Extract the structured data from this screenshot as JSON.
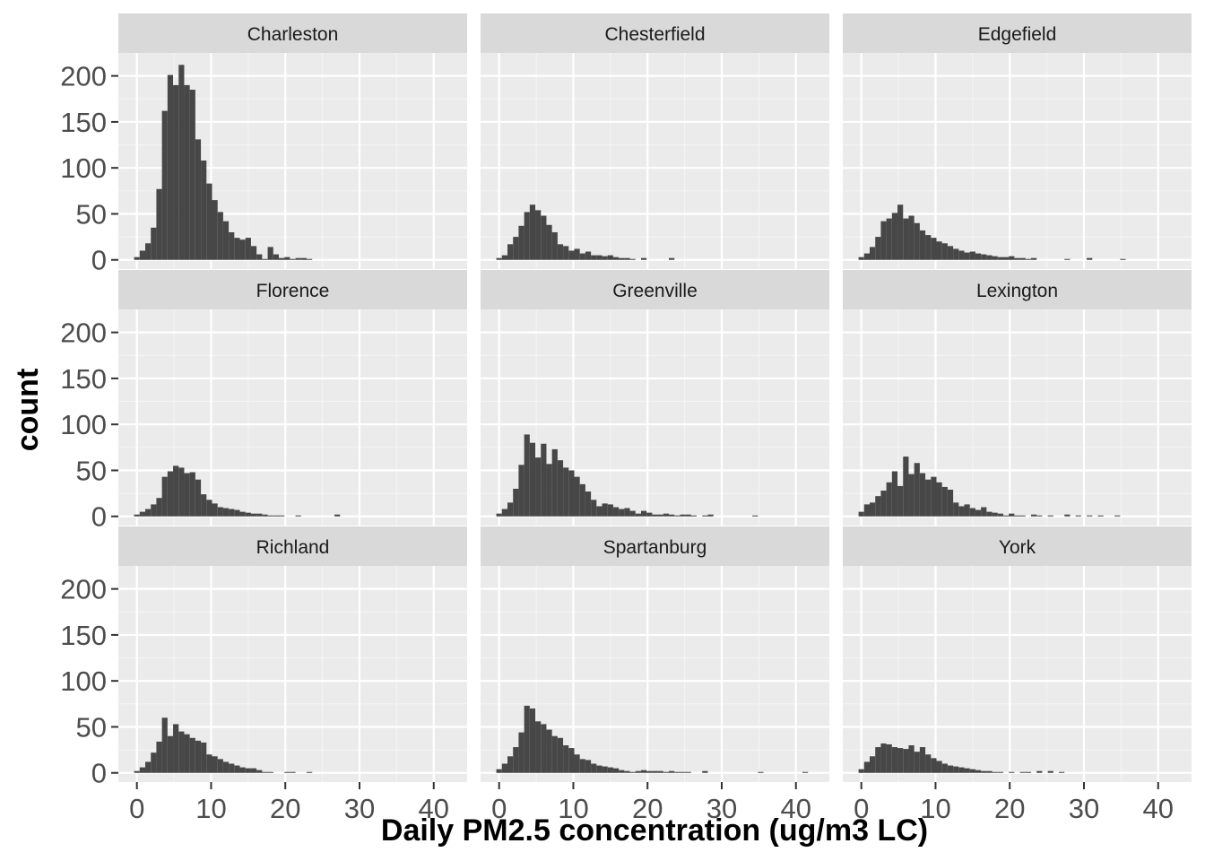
{
  "colors": {
    "panel_bg": "#ebebeb",
    "strip_bg": "#d9d9d9",
    "grid_major": "#ffffff",
    "grid_minor": "#f5f5f5",
    "bar": "#474747",
    "tick": "#333333"
  },
  "chart_data": {
    "type": "bar",
    "subtype": "faceted histogram",
    "xlabel": "Daily PM2.5 concentration (ug/m3 LC)",
    "ylabel": "count",
    "xlim": [
      -2.5,
      44.5
    ],
    "ylim": [
      -10,
      225
    ],
    "x_ticks": [
      0,
      10,
      20,
      30,
      40
    ],
    "y_ticks": [
      0,
      50,
      100,
      150,
      200
    ],
    "bin_width": 0.75,
    "bin_start": -0.375,
    "grid": true,
    "facet_layout": {
      "rows": 3,
      "cols": 3
    },
    "facets": [
      {
        "name": "Charleston",
        "counts": [
          3,
          10,
          18,
          35,
          77,
          162,
          201,
          190,
          212,
          190,
          185,
          131,
          108,
          83,
          65,
          52,
          42,
          30,
          24,
          22,
          24,
          15,
          6,
          1,
          14,
          6,
          2,
          3,
          1,
          2,
          2,
          1
        ]
      },
      {
        "name": "Chesterfield",
        "counts": [
          2,
          5,
          17,
          25,
          37,
          52,
          60,
          54,
          48,
          38,
          30,
          17,
          15,
          10,
          12,
          7,
          9,
          5,
          5,
          4,
          5,
          3,
          2,
          2,
          1,
          0,
          2,
          0,
          0,
          0,
          0,
          2
        ]
      },
      {
        "name": "Edgefield",
        "counts": [
          3,
          7,
          14,
          25,
          42,
          45,
          51,
          60,
          45,
          48,
          40,
          32,
          27,
          24,
          20,
          18,
          15,
          12,
          10,
          8,
          9,
          7,
          6,
          5,
          4,
          3,
          3,
          4,
          2,
          2,
          1,
          2,
          0,
          0,
          0,
          0,
          0,
          1,
          0,
          0,
          0,
          2,
          0,
          0,
          0,
          0,
          0,
          1
        ]
      },
      {
        "name": "Florence",
        "counts": [
          2,
          5,
          8,
          13,
          20,
          43,
          49,
          55,
          53,
          47,
          48,
          40,
          24,
          18,
          14,
          10,
          9,
          8,
          7,
          5,
          4,
          3,
          3,
          2,
          1,
          1,
          1,
          0,
          0,
          1,
          0,
          0,
          0,
          0,
          0,
          0,
          2
        ]
      },
      {
        "name": "Greenville",
        "counts": [
          3,
          8,
          15,
          30,
          56,
          89,
          80,
          64,
          79,
          57,
          73,
          61,
          53,
          50,
          43,
          35,
          27,
          18,
          11,
          14,
          13,
          10,
          8,
          9,
          6,
          3,
          6,
          4,
          2,
          2,
          3,
          2,
          1,
          2,
          2,
          1,
          0,
          1,
          2,
          0,
          0,
          0,
          0,
          0,
          0,
          0,
          1
        ]
      },
      {
        "name": "Lexington",
        "counts": [
          5,
          13,
          15,
          22,
          28,
          37,
          49,
          33,
          65,
          46,
          58,
          47,
          40,
          43,
          37,
          32,
          29,
          15,
          11,
          13,
          9,
          7,
          10,
          5,
          4,
          3,
          1,
          3,
          1,
          1,
          0,
          2,
          1,
          0,
          1,
          0,
          0,
          2,
          0,
          1,
          0,
          1,
          0,
          1,
          0,
          0,
          1
        ]
      },
      {
        "name": "Richland",
        "counts": [
          2,
          6,
          12,
          22,
          34,
          60,
          40,
          53,
          45,
          42,
          38,
          35,
          33,
          20,
          18,
          15,
          12,
          10,
          8,
          6,
          5,
          5,
          3,
          1,
          1,
          0,
          0,
          1,
          1,
          0,
          0,
          1
        ]
      },
      {
        "name": "Spartanburg",
        "counts": [
          4,
          10,
          18,
          28,
          44,
          73,
          70,
          56,
          53,
          47,
          40,
          38,
          30,
          27,
          20,
          15,
          14,
          10,
          8,
          7,
          6,
          5,
          3,
          2,
          1,
          2,
          3,
          2,
          2,
          2,
          1,
          2,
          1,
          1,
          1,
          0,
          0,
          2,
          0,
          0,
          0,
          0,
          0,
          0,
          0,
          0,
          0,
          1,
          0,
          0,
          0,
          0,
          0,
          0,
          0,
          1
        ]
      },
      {
        "name": "York",
        "counts": [
          4,
          12,
          18,
          28,
          32,
          31,
          28,
          27,
          26,
          30,
          23,
          28,
          20,
          16,
          13,
          10,
          8,
          7,
          6,
          5,
          4,
          3,
          2,
          2,
          1,
          1,
          0,
          1,
          0,
          1,
          1,
          0,
          2,
          0,
          2,
          0,
          1
        ]
      }
    ]
  }
}
